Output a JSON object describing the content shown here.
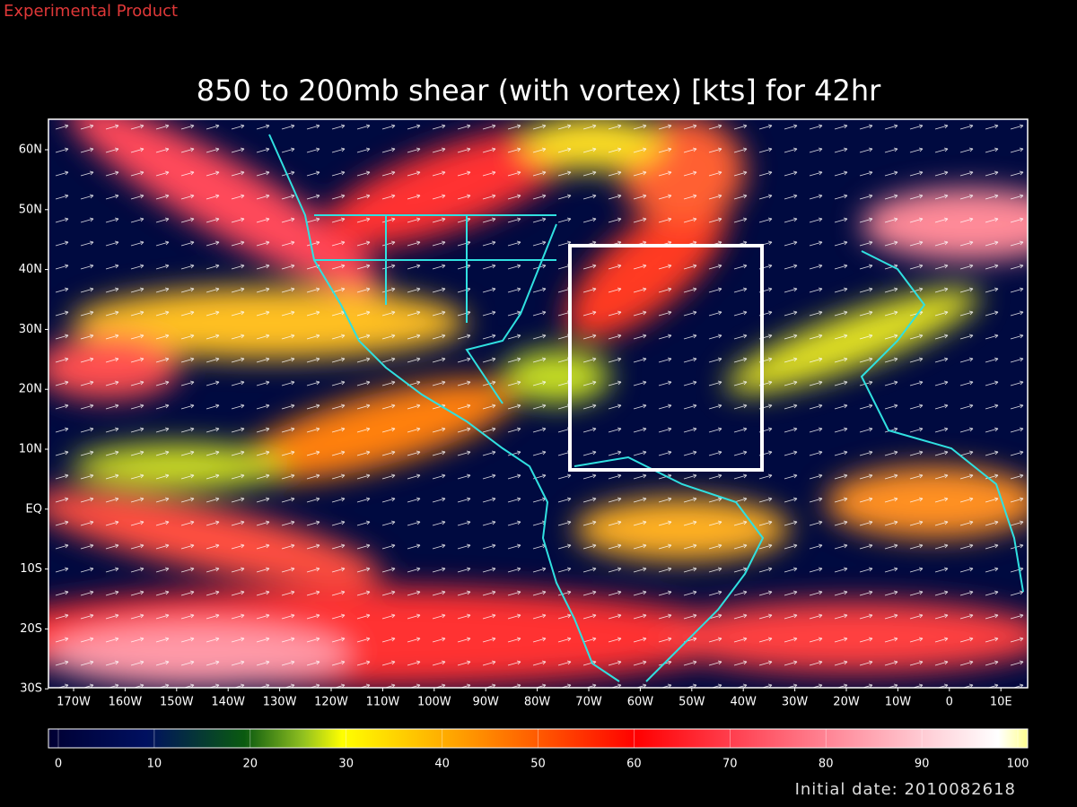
{
  "header": {
    "note": "Experimental Product",
    "title": "850 to 200mb shear (with vortex) [kts] for 42hr"
  },
  "map": {
    "lat_labels": [
      "60N",
      "50N",
      "40N",
      "30N",
      "20N",
      "10N",
      "EQ",
      "10S",
      "20S",
      "30S"
    ],
    "lon_labels": [
      "170W",
      "160W",
      "150W",
      "140W",
      "130W",
      "120W",
      "110W",
      "100W",
      "90W",
      "80W",
      "70W",
      "60W",
      "50W",
      "40W",
      "30W",
      "20W",
      "10W",
      "0",
      "10E"
    ]
  },
  "colorbar": {
    "ticks": [
      0,
      10,
      20,
      30,
      40,
      50,
      60,
      70,
      80,
      90,
      100
    ]
  },
  "footer": {
    "initial_date": "Initial date: 2010082618"
  }
}
